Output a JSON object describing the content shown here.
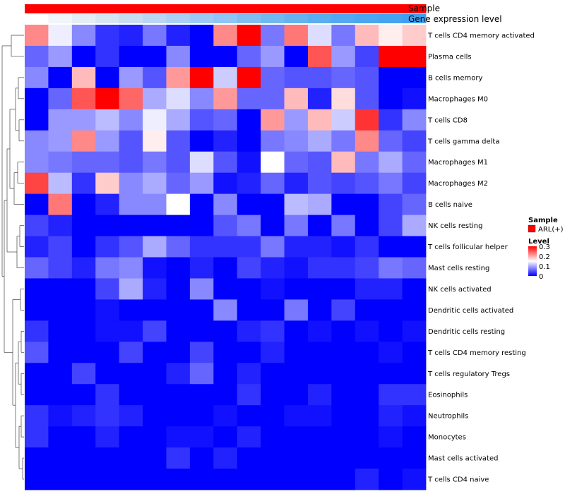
{
  "chart_data": {
    "type": "heatmap",
    "title": "",
    "column_annotations": [
      {
        "name": "Sample",
        "label": "Sample"
      },
      {
        "name": "Gene expression level",
        "label": "Gene expression level"
      }
    ],
    "sample_annotation_color": "#ff0000",
    "gene_expression_colors": [
      "#ffffff",
      "#f1f5f9",
      "#e3edf5",
      "#d5e6f2",
      "#c7ddf2",
      "#b9d6f3",
      "#aad0f4",
      "#9ccaf5",
      "#8ec4f6",
      "#80beef",
      "#72b8f0",
      "#66b2ef",
      "#5aadef",
      "#52a9ef",
      "#4ba6ef",
      "#45a3ef",
      "#40a0ef"
    ],
    "rows": [
      "T cells CD4 memory activated",
      "Plasma cells",
      "B cells memory",
      "Macrophages M0",
      "T cells CD8",
      "T cells gamma delta",
      "Macrophages M1",
      "Macrophages M2",
      "B cells naive",
      "NK cells resting",
      "T cells follicular helper",
      "Mast cells resting",
      "NK cells activated",
      "Dendritic cells activated",
      "Dendritic cells resting",
      "T cells CD4 memory resting",
      "T cells regulatory  Tregs",
      "Eosinophils",
      "Neutrophils",
      "Monocytes",
      "Mast cells activated",
      "T cells CD4 naive"
    ],
    "values": [
      [
        0.22,
        0.14,
        0.08,
        0.03,
        0.02,
        0.07,
        0.02,
        0.0,
        0.22,
        0.3,
        0.07,
        0.23,
        0.13,
        0.07,
        0.19,
        0.16,
        0.18
      ],
      [
        0.06,
        0.09,
        0.0,
        0.03,
        0.0,
        0.0,
        0.08,
        0.0,
        0.0,
        0.06,
        0.09,
        0.0,
        0.25,
        0.09,
        0.04,
        0.3,
        0.3
      ],
      [
        0.08,
        0.0,
        0.19,
        0.0,
        0.09,
        0.05,
        0.21,
        0.3,
        0.12,
        0.3,
        0.06,
        0.05,
        0.05,
        0.06,
        0.05,
        0.0,
        0.0
      ],
      [
        0.0,
        0.06,
        0.25,
        0.3,
        0.24,
        0.1,
        0.13,
        0.08,
        0.21,
        0.06,
        0.06,
        0.19,
        0.02,
        0.17,
        0.05,
        0.0,
        0.01
      ],
      [
        0.0,
        0.09,
        0.09,
        0.11,
        0.08,
        0.14,
        0.1,
        0.05,
        0.06,
        0.0,
        0.21,
        0.09,
        0.19,
        0.12,
        0.27,
        0.03,
        0.08
      ],
      [
        0.08,
        0.09,
        0.22,
        0.09,
        0.05,
        0.16,
        0.05,
        0.0,
        0.02,
        0.0,
        0.07,
        0.08,
        0.1,
        0.07,
        0.22,
        0.06,
        0.04
      ],
      [
        0.08,
        0.07,
        0.06,
        0.06,
        0.05,
        0.07,
        0.05,
        0.13,
        0.05,
        0.01,
        0.15,
        0.06,
        0.05,
        0.19,
        0.07,
        0.1,
        0.06
      ],
      [
        0.26,
        0.11,
        0.03,
        0.18,
        0.08,
        0.1,
        0.06,
        0.09,
        0.01,
        0.02,
        0.06,
        0.02,
        0.05,
        0.04,
        0.05,
        0.07,
        0.04
      ],
      [
        0.0,
        0.23,
        0.0,
        0.02,
        0.08,
        0.08,
        0.15,
        0.0,
        0.08,
        0.0,
        0.0,
        0.11,
        0.1,
        0.0,
        0.0,
        0.04,
        0.06
      ],
      [
        0.04,
        0.02,
        0.0,
        0.0,
        0.0,
        0.0,
        0.0,
        0.0,
        0.05,
        0.07,
        0.0,
        0.07,
        0.0,
        0.07,
        0.0,
        0.04,
        0.1
      ],
      [
        0.02,
        0.04,
        0.0,
        0.03,
        0.05,
        0.1,
        0.06,
        0.03,
        0.03,
        0.03,
        0.07,
        0.02,
        0.02,
        0.01,
        0.03,
        0.0,
        0.0
      ],
      [
        0.06,
        0.04,
        0.02,
        0.07,
        0.08,
        0.01,
        0.0,
        0.02,
        0.0,
        0.04,
        0.02,
        0.01,
        0.03,
        0.03,
        0.04,
        0.07,
        0.06
      ],
      [
        0.0,
        0.0,
        0.0,
        0.04,
        0.1,
        0.02,
        0.0,
        0.08,
        0.0,
        0.0,
        0.01,
        0.0,
        0.0,
        0.0,
        0.02,
        0.02,
        0.0
      ],
      [
        0.0,
        0.0,
        0.0,
        0.01,
        0.0,
        0.0,
        0.0,
        0.0,
        0.08,
        0.0,
        0.0,
        0.07,
        0.0,
        0.04,
        0.0,
        0.0,
        0.0
      ],
      [
        0.03,
        0.0,
        0.0,
        0.01,
        0.01,
        0.04,
        0.0,
        0.0,
        0.0,
        0.02,
        0.03,
        0.0,
        0.01,
        0.0,
        0.01,
        0.0,
        0.01
      ],
      [
        0.05,
        0.0,
        0.0,
        0.0,
        0.04,
        0.0,
        0.0,
        0.04,
        0.0,
        0.0,
        0.02,
        0.0,
        0.0,
        0.0,
        0.0,
        0.01,
        0.0
      ],
      [
        0.0,
        0.0,
        0.04,
        0.0,
        0.0,
        0.0,
        0.02,
        0.06,
        0.0,
        0.02,
        0.0,
        0.0,
        0.0,
        0.0,
        0.0,
        0.0,
        0.0
      ],
      [
        0.0,
        0.0,
        0.0,
        0.03,
        0.0,
        0.0,
        0.0,
        0.0,
        0.0,
        0.03,
        0.0,
        0.0,
        0.02,
        0.0,
        0.0,
        0.03,
        0.03
      ],
      [
        0.03,
        0.01,
        0.02,
        0.03,
        0.02,
        0.0,
        0.0,
        0.0,
        0.01,
        0.0,
        0.0,
        0.01,
        0.01,
        0.0,
        0.0,
        0.02,
        0.01
      ],
      [
        0.03,
        0.0,
        0.0,
        0.02,
        0.0,
        0.0,
        0.01,
        0.01,
        0.0,
        0.02,
        0.0,
        0.0,
        0.0,
        0.0,
        0.0,
        0.01,
        0.0
      ],
      [
        0.0,
        0.0,
        0.0,
        0.0,
        0.0,
        0.0,
        0.03,
        0.0,
        0.02,
        0.0,
        0.0,
        0.0,
        0.0,
        0.0,
        0.0,
        0.0,
        0.0
      ],
      [
        0.0,
        0.0,
        0.0,
        0.0,
        0.0,
        0.0,
        0.0,
        0.0,
        0.0,
        0.0,
        0.0,
        0.0,
        0.0,
        0.0,
        0.02,
        0.0,
        0.01
      ]
    ],
    "color_scale": {
      "min": 0,
      "max": 0.3,
      "low": "#0000ff",
      "mid": "#ffffff",
      "high": "#ff0000",
      "mid_value": 0.15
    },
    "legend": {
      "position": "right",
      "sample_title": "Sample",
      "sample_entry": "ARL(+)",
      "sample_color": "#ff0000",
      "level_title": "Level",
      "level_ticks": [
        "0.3",
        "0.2",
        "0.1",
        "0"
      ]
    },
    "dendrogram": "row"
  }
}
